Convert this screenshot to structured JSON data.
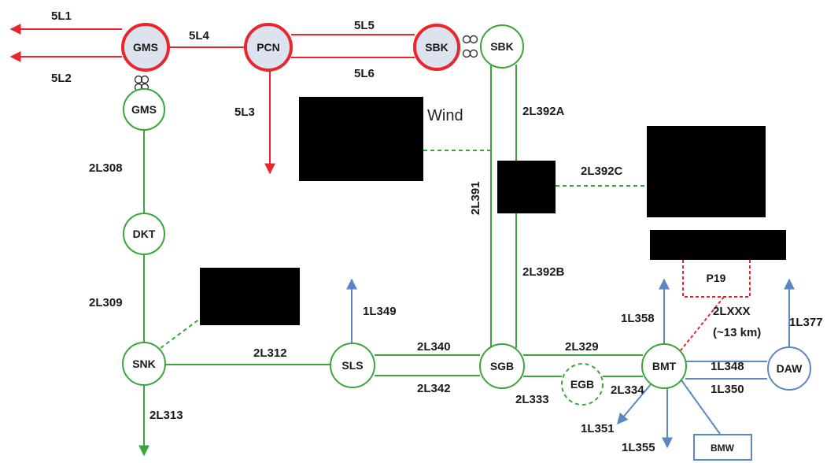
{
  "colors": {
    "red": "#e8262b",
    "green": "#3aa53a",
    "blue": "#5b87c5",
    "node_fill_red": "#dce3ee",
    "black": "#000000"
  },
  "nodes": {
    "gms_500": "GMS",
    "pcn": "PCN",
    "sbk_500": "SBK",
    "sbk_230": "SBK",
    "gms_230": "GMS",
    "dkt": "DKT",
    "snk": "SNK",
    "sls": "SLS",
    "sgb": "SGB",
    "egb": "EGB",
    "bmt": "BMT",
    "daw": "DAW",
    "bmw": "BMW",
    "p19": "P19"
  },
  "lines": {
    "l5l1": "5L1",
    "l5l2": "5L2",
    "l5l4": "5L4",
    "l5l5": "5L5",
    "l5l6": "5L6",
    "l5l3": "5L3",
    "l2l308": "2L308",
    "l2l309": "2L309",
    "l2l313": "2L313",
    "l2l312": "2L312",
    "l2l340": "2L340",
    "l2l342": "2L342",
    "l2l392a": "2L392A",
    "l2l391": "2L391",
    "l2l392b": "2L392B",
    "l2l392c": "2L392C",
    "l2l329": "2L329",
    "l2l333": "2L333",
    "l2l334": "2L334",
    "l1l349": "1L349",
    "l1l358": "1L358",
    "l1l377": "1L377",
    "l1l348": "1L348",
    "l1l350": "1L350",
    "l1l351": "1L351",
    "l1l355": "1L355",
    "l2lxxx": "2LXXX",
    "l2lxxx_len": "(~13 km)"
  },
  "labels": {
    "wind": "Wind"
  }
}
